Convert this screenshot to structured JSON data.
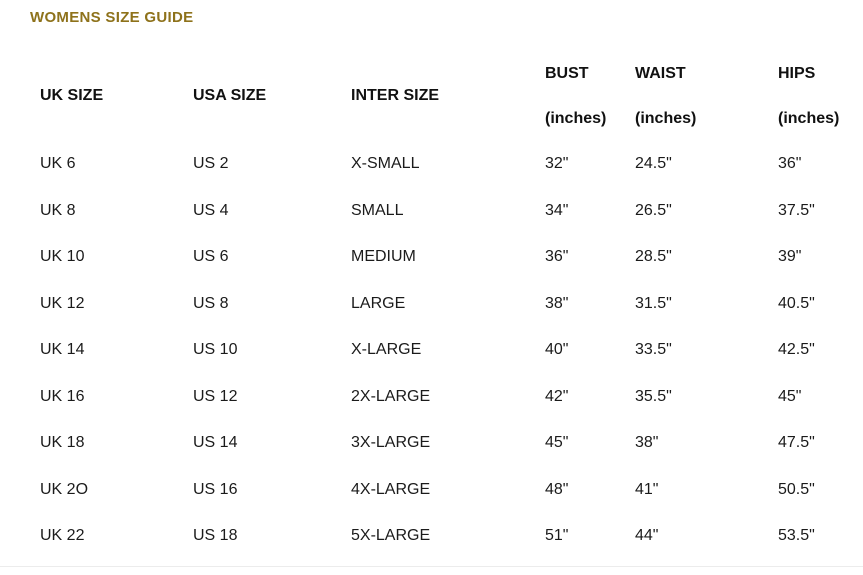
{
  "page": {
    "title": "WOMENS SIZE GUIDE",
    "title_color": "#8e721b",
    "background_color": "#ffffff",
    "divider_color": "#ececec"
  },
  "table": {
    "columns": [
      {
        "label": "UK SIZE",
        "sub": ""
      },
      {
        "label": "USA SIZE",
        "sub": ""
      },
      {
        "label": "INTER SIZE",
        "sub": ""
      },
      {
        "label": "BUST",
        "sub": "(inches)"
      },
      {
        "label": "WAIST",
        "sub": "(inches)"
      },
      {
        "label": "HIPS",
        "sub": "(inches)"
      }
    ],
    "rows": [
      [
        "UK 6",
        "US 2",
        "X-SMALL",
        "32\"",
        "24.5\"",
        "36\""
      ],
      [
        "UK 8",
        "US 4",
        "SMALL",
        "34\"",
        "26.5\"",
        "37.5\""
      ],
      [
        "UK 10",
        "US 6",
        "MEDIUM",
        "36\"",
        "28.5\"",
        "39\""
      ],
      [
        "UK 12",
        "US 8",
        "LARGE",
        "38\"",
        "31.5\"",
        "40.5\""
      ],
      [
        "UK 14",
        "US 10",
        "X-LARGE",
        "40\"",
        "33.5\"",
        "42.5\""
      ],
      [
        "UK 16",
        "US 12",
        "2X-LARGE",
        "42\"",
        "35.5\"",
        "45\""
      ],
      [
        "UK 18",
        "US 14",
        "3X-LARGE",
        "45\"",
        "38\"",
        "47.5\""
      ],
      [
        "UK 2O",
        "US 16",
        "4X-LARGE",
        "48\"",
        "41\"",
        "50.5\""
      ],
      [
        "UK 22",
        "US 18",
        "5X-LARGE",
        "51\"",
        "44\"",
        "53.5\""
      ]
    ]
  },
  "chart_data": {
    "type": "table",
    "title": "WOMENS SIZE GUIDE",
    "columns": [
      "UK SIZE",
      "USA SIZE",
      "INTER SIZE",
      "BUST (inches)",
      "WAIST (inches)",
      "HIPS (inches)"
    ],
    "rows": [
      [
        "UK 6",
        "US 2",
        "X-SMALL",
        "32\"",
        "24.5\"",
        "36\""
      ],
      [
        "UK 8",
        "US 4",
        "SMALL",
        "34\"",
        "26.5\"",
        "37.5\""
      ],
      [
        "UK 10",
        "US 6",
        "MEDIUM",
        "36\"",
        "28.5\"",
        "39\""
      ],
      [
        "UK 12",
        "US 8",
        "LARGE",
        "38\"",
        "31.5\"",
        "40.5\""
      ],
      [
        "UK 14",
        "US 10",
        "X-LARGE",
        "40\"",
        "33.5\"",
        "42.5\""
      ],
      [
        "UK 16",
        "US 12",
        "2X-LARGE",
        "42\"",
        "35.5\"",
        "45\""
      ],
      [
        "UK 18",
        "US 14",
        "3X-LARGE",
        "45\"",
        "38\"",
        "47.5\""
      ],
      [
        "UK 2O",
        "US 16",
        "4X-LARGE",
        "48\"",
        "41\"",
        "50.5\""
      ],
      [
        "UK 22",
        "US 18",
        "5X-LARGE",
        "51\"",
        "44\"",
        "53.5\""
      ]
    ],
    "bust_inches": [
      32,
      34,
      36,
      38,
      40,
      42,
      45,
      48,
      51
    ],
    "waist_inches": [
      24.5,
      26.5,
      28.5,
      31.5,
      33.5,
      35.5,
      38,
      41,
      44
    ],
    "hips_inches": [
      36,
      37.5,
      39,
      40.5,
      42.5,
      45,
      47.5,
      50.5,
      53.5
    ]
  }
}
